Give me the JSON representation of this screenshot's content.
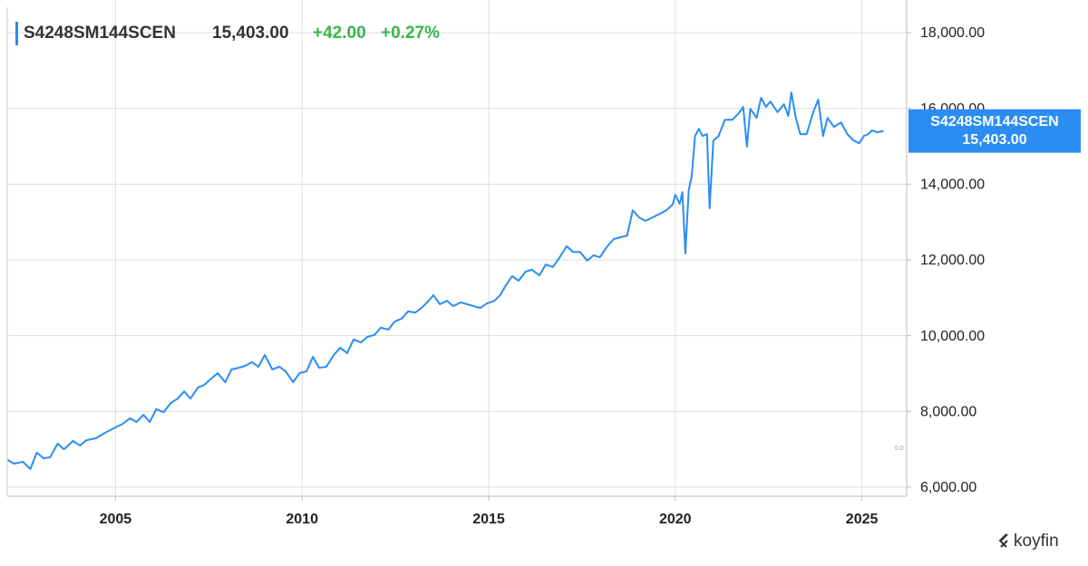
{
  "chart_data": {
    "type": "line",
    "title": "S4248SM144SCEN",
    "last_label": "15,403.00",
    "change": "+42.00",
    "change_pct": "+0.27%",
    "annotation": "0.0",
    "brand": "koyfin",
    "xlim": [
      2002.1,
      2026.2
    ],
    "xticks": [
      2005,
      2010,
      2015,
      2020,
      2025
    ],
    "ylim": [
      5760,
      18670
    ],
    "yticks": [
      {
        "value": 6000,
        "label": "6,000.00"
      },
      {
        "value": 8000,
        "label": "8,000.00"
      },
      {
        "value": 10000,
        "label": "10,000.00"
      },
      {
        "value": 12000,
        "label": "12,000.00"
      },
      {
        "value": 14000,
        "label": "14,000.00"
      },
      {
        "value": 16000,
        "label": "16,000.00"
      },
      {
        "value": 18000,
        "label": "18,000.00"
      }
    ],
    "grid": true,
    "x": [
      2002.11,
      2002.28,
      2002.52,
      2002.72,
      2002.89,
      2003.08,
      2003.25,
      2003.45,
      2003.62,
      2003.86,
      2004.05,
      2004.22,
      2004.47,
      2004.71,
      2005.0,
      2005.19,
      2005.39,
      2005.56,
      2005.75,
      2005.92,
      2006.09,
      2006.29,
      2006.48,
      2006.67,
      2006.84,
      2007.01,
      2007.21,
      2007.38,
      2007.57,
      2007.74,
      2007.94,
      2008.11,
      2008.3,
      2008.47,
      2008.66,
      2008.83,
      2009.0,
      2009.2,
      2009.39,
      2009.56,
      2009.76,
      2009.93,
      2010.12,
      2010.29,
      2010.46,
      2010.65,
      2010.85,
      2011.02,
      2011.21,
      2011.38,
      2011.58,
      2011.75,
      2011.94,
      2012.11,
      2012.31,
      2012.48,
      2012.67,
      2012.84,
      2013.03,
      2013.2,
      2013.37,
      2013.52,
      2013.69,
      2013.88,
      2014.05,
      2014.25,
      2014.42,
      2014.59,
      2014.78,
      2014.95,
      2015.15,
      2015.31,
      2015.46,
      2015.63,
      2015.8,
      2015.99,
      2016.16,
      2016.36,
      2016.53,
      2016.72,
      2016.89,
      2017.09,
      2017.26,
      2017.45,
      2017.64,
      2017.81,
      2017.98,
      2018.18,
      2018.35,
      2018.54,
      2018.71,
      2018.86,
      2019.03,
      2019.2,
      2019.39,
      2019.59,
      2019.76,
      2019.93,
      2020.0,
      2020.12,
      2020.19,
      2020.27,
      2020.36,
      2020.44,
      2020.53,
      2020.63,
      2020.73,
      2020.85,
      2020.92,
      2021.02,
      2021.16,
      2021.33,
      2021.53,
      2021.7,
      2021.82,
      2021.92,
      2022.01,
      2022.18,
      2022.3,
      2022.43,
      2022.55,
      2022.74,
      2022.91,
      2023.03,
      2023.11,
      2023.23,
      2023.35,
      2023.52,
      2023.71,
      2023.83,
      2023.96,
      2024.08,
      2024.25,
      2024.44,
      2024.61,
      2024.78,
      2024.93,
      2025.05,
      2025.17,
      2025.27,
      2025.41,
      2025.58
    ],
    "series": [
      {
        "name": "S4248SM144SCEN",
        "color": "#2b8df2",
        "values": [
          6720,
          6620,
          6670,
          6480,
          6910,
          6760,
          6790,
          7150,
          7000,
          7220,
          7100,
          7240,
          7290,
          7430,
          7580,
          7670,
          7820,
          7720,
          7910,
          7720,
          8060,
          7980,
          8220,
          8340,
          8530,
          8340,
          8630,
          8700,
          8870,
          9010,
          8770,
          9110,
          9150,
          9200,
          9300,
          9180,
          9490,
          9110,
          9180,
          9060,
          8770,
          9010,
          9060,
          9440,
          9150,
          9180,
          9490,
          9680,
          9540,
          9900,
          9820,
          9970,
          10020,
          10210,
          10160,
          10370,
          10450,
          10640,
          10610,
          10730,
          10900,
          11070,
          10830,
          10920,
          10780,
          10880,
          10830,
          10780,
          10730,
          10850,
          10920,
          11070,
          11330,
          11570,
          11450,
          11690,
          11740,
          11590,
          11880,
          11810,
          12050,
          12360,
          12210,
          12210,
          11980,
          12120,
          12070,
          12360,
          12550,
          12600,
          12640,
          13310,
          13120,
          13030,
          13120,
          13220,
          13310,
          13460,
          13720,
          13480,
          13790,
          12170,
          13840,
          14200,
          15270,
          15460,
          15270,
          15320,
          13360,
          15150,
          15270,
          15700,
          15700,
          15870,
          16040,
          14990,
          15990,
          15750,
          16280,
          16040,
          16180,
          15900,
          16110,
          15800,
          16420,
          15750,
          15320,
          15320,
          15940,
          16230,
          15270,
          15750,
          15510,
          15630,
          15320,
          15150,
          15080,
          15270,
          15320,
          15420,
          15370,
          15403
        ]
      }
    ]
  }
}
